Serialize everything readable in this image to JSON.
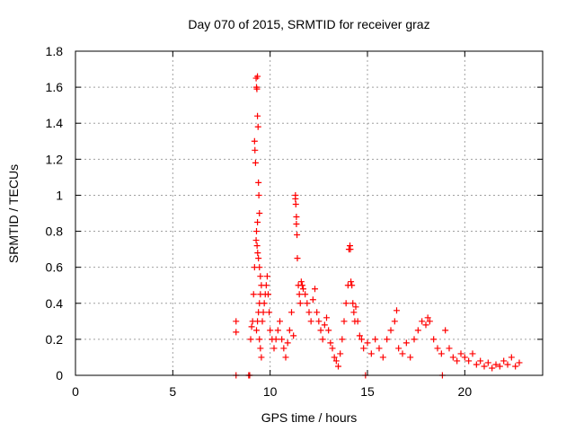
{
  "chart_data": {
    "type": "scatter",
    "title": "Day 070 of 2015, SRMTID for receiver graz",
    "xlabel": "GPS time / hours",
    "ylabel": "SRMTID / TECUs",
    "xlim": [
      0,
      24
    ],
    "ylim": [
      0,
      1.8
    ],
    "xticks": [
      0,
      5,
      10,
      15,
      20
    ],
    "xtick_labels": [
      "0",
      "5",
      "10",
      "15",
      "20"
    ],
    "yticks": [
      0,
      0.2,
      0.4,
      0.6,
      0.8,
      1.0,
      1.2,
      1.4,
      1.6,
      1.8
    ],
    "ytick_labels": [
      "0",
      "0.2",
      "0.4",
      "0.6",
      "0.8",
      "1",
      "1.2",
      "1.4",
      "1.6",
      "1.8"
    ],
    "grid": true,
    "marker": "plus",
    "marker_color": "#ff0000",
    "series": [
      {
        "name": "SRMTID",
        "points": [
          [
            8.25,
            0.3
          ],
          [
            8.25,
            0.24
          ],
          [
            8.25,
            0.0
          ],
          [
            8.9,
            0.0
          ],
          [
            8.95,
            0.0
          ],
          [
            9.0,
            0.2
          ],
          [
            9.05,
            0.27
          ],
          [
            9.1,
            0.3
          ],
          [
            9.15,
            0.45
          ],
          [
            9.2,
            0.6
          ],
          [
            9.2,
            1.3
          ],
          [
            9.22,
            1.25
          ],
          [
            9.25,
            1.18
          ],
          [
            9.28,
            1.65
          ],
          [
            9.3,
            1.6
          ],
          [
            9.32,
            1.59
          ],
          [
            9.35,
            1.66
          ],
          [
            9.35,
            1.44
          ],
          [
            9.38,
            1.38
          ],
          [
            9.4,
            1.07
          ],
          [
            9.42,
            1.0
          ],
          [
            9.45,
            0.9
          ],
          [
            9.35,
            0.85
          ],
          [
            9.3,
            0.8
          ],
          [
            9.28,
            0.75
          ],
          [
            9.33,
            0.72
          ],
          [
            9.36,
            0.68
          ],
          [
            9.4,
            0.65
          ],
          [
            9.45,
            0.6
          ],
          [
            9.5,
            0.55
          ],
          [
            9.55,
            0.5
          ],
          [
            9.5,
            0.45
          ],
          [
            9.45,
            0.4
          ],
          [
            9.4,
            0.35
          ],
          [
            9.35,
            0.3
          ],
          [
            9.3,
            0.25
          ],
          [
            9.45,
            0.2
          ],
          [
            9.5,
            0.15
          ],
          [
            9.55,
            0.1
          ],
          [
            9.6,
            0.3
          ],
          [
            9.65,
            0.35
          ],
          [
            9.7,
            0.4
          ],
          [
            9.75,
            0.45
          ],
          [
            9.8,
            0.5
          ],
          [
            9.85,
            0.55
          ],
          [
            9.9,
            0.45
          ],
          [
            9.95,
            0.35
          ],
          [
            10.0,
            0.25
          ],
          [
            10.1,
            0.2
          ],
          [
            10.2,
            0.15
          ],
          [
            10.3,
            0.2
          ],
          [
            10.4,
            0.25
          ],
          [
            10.5,
            0.3
          ],
          [
            10.6,
            0.2
          ],
          [
            10.7,
            0.15
          ],
          [
            10.8,
            0.1
          ],
          [
            10.9,
            0.18
          ],
          [
            11.0,
            0.25
          ],
          [
            11.1,
            0.35
          ],
          [
            11.2,
            0.22
          ],
          [
            11.3,
            1.0
          ],
          [
            11.3,
            0.98
          ],
          [
            11.32,
            0.95
          ],
          [
            11.35,
            0.88
          ],
          [
            11.35,
            0.84
          ],
          [
            11.38,
            0.78
          ],
          [
            11.4,
            0.65
          ],
          [
            11.45,
            0.5
          ],
          [
            11.5,
            0.45
          ],
          [
            11.55,
            0.4
          ],
          [
            11.6,
            0.52
          ],
          [
            11.65,
            0.5
          ],
          [
            11.7,
            0.48
          ],
          [
            11.8,
            0.45
          ],
          [
            11.9,
            0.4
          ],
          [
            12.0,
            0.35
          ],
          [
            12.1,
            0.3
          ],
          [
            12.2,
            0.42
          ],
          [
            12.3,
            0.48
          ],
          [
            12.4,
            0.35
          ],
          [
            12.5,
            0.3
          ],
          [
            12.6,
            0.25
          ],
          [
            12.7,
            0.2
          ],
          [
            12.8,
            0.28
          ],
          [
            12.9,
            0.32
          ],
          [
            13.0,
            0.25
          ],
          [
            13.1,
            0.18
          ],
          [
            13.2,
            0.15
          ],
          [
            13.3,
            0.1
          ],
          [
            13.4,
            0.08
          ],
          [
            13.5,
            0.05
          ],
          [
            13.6,
            0.12
          ],
          [
            13.7,
            0.2
          ],
          [
            13.8,
            0.3
          ],
          [
            13.9,
            0.4
          ],
          [
            14.0,
            0.5
          ],
          [
            14.05,
            0.7
          ],
          [
            14.1,
            0.72
          ],
          [
            14.12,
            0.7
          ],
          [
            14.15,
            0.52
          ],
          [
            14.2,
            0.5
          ],
          [
            14.25,
            0.4
          ],
          [
            14.3,
            0.35
          ],
          [
            14.35,
            0.3
          ],
          [
            14.4,
            0.38
          ],
          [
            14.5,
            0.3
          ],
          [
            14.6,
            0.22
          ],
          [
            14.7,
            0.2
          ],
          [
            14.8,
            0.15
          ],
          [
            14.9,
            0.0
          ],
          [
            15.0,
            0.18
          ],
          [
            15.2,
            0.12
          ],
          [
            15.4,
            0.2
          ],
          [
            15.6,
            0.15
          ],
          [
            15.8,
            0.1
          ],
          [
            16.0,
            0.2
          ],
          [
            16.2,
            0.25
          ],
          [
            16.4,
            0.3
          ],
          [
            16.5,
            0.36
          ],
          [
            16.6,
            0.15
          ],
          [
            16.8,
            0.12
          ],
          [
            17.0,
            0.18
          ],
          [
            17.2,
            0.1
          ],
          [
            17.4,
            0.2
          ],
          [
            17.6,
            0.25
          ],
          [
            17.8,
            0.3
          ],
          [
            18.0,
            0.28
          ],
          [
            18.1,
            0.32
          ],
          [
            18.2,
            0.3
          ],
          [
            18.4,
            0.2
          ],
          [
            18.6,
            0.15
          ],
          [
            18.8,
            0.12
          ],
          [
            18.85,
            0.0
          ],
          [
            19.0,
            0.25
          ],
          [
            19.2,
            0.15
          ],
          [
            19.4,
            0.1
          ],
          [
            19.6,
            0.08
          ],
          [
            19.8,
            0.12
          ],
          [
            20.0,
            0.1
          ],
          [
            20.2,
            0.08
          ],
          [
            20.4,
            0.12
          ],
          [
            20.6,
            0.06
          ],
          [
            20.8,
            0.08
          ],
          [
            21.0,
            0.05
          ],
          [
            21.2,
            0.07
          ],
          [
            21.4,
            0.04
          ],
          [
            21.6,
            0.06
          ],
          [
            21.8,
            0.05
          ],
          [
            22.0,
            0.08
          ],
          [
            22.2,
            0.06
          ],
          [
            22.4,
            0.1
          ],
          [
            22.6,
            0.05
          ],
          [
            22.8,
            0.07
          ]
        ]
      }
    ]
  }
}
